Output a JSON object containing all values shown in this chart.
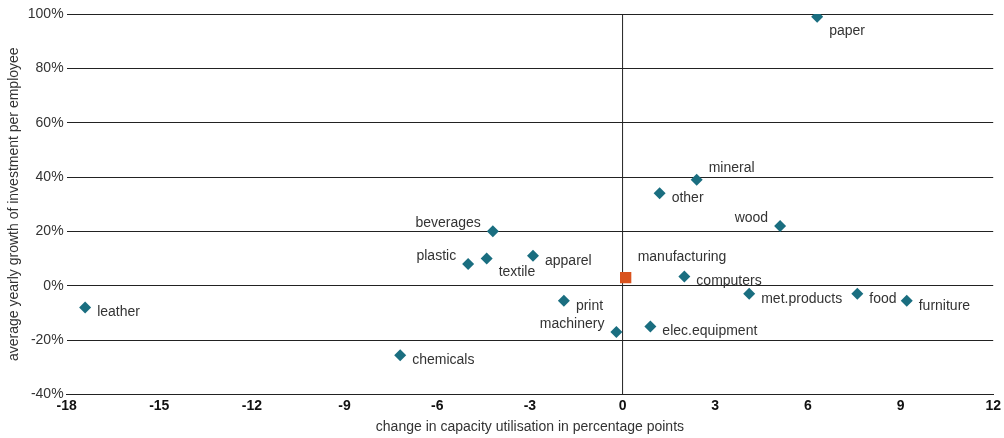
{
  "chart_data": {
    "type": "scatter",
    "xlabel": "change in capacity utilisation in percentage points",
    "ylabel": "average yearly growth of investment per employee",
    "series": [
      {
        "color": "#1a6e80",
        "marker": "diamond",
        "x": [
          6.3,
          2.4,
          1.2,
          5.1,
          -4.2,
          -2.9,
          -4.4,
          -5.0,
          2.0,
          4.1,
          7.6,
          9.2,
          -17.4,
          -1.9,
          -0.2,
          0.9,
          -7.2
        ],
        "values": [
          99,
          39,
          34,
          22,
          20,
          11,
          10,
          8,
          3.4,
          -3,
          -3,
          -5.5,
          -8,
          -5.5,
          -17,
          -15,
          -25.6
        ]
      },
      {
        "color": "#d9531e",
        "marker": "square",
        "x": [
          0.1
        ],
        "values": [
          3
        ]
      }
    ],
    "annotations": [
      {
        "text": "paper",
        "x": 6.3,
        "y": 99
      },
      {
        "text": "mineral",
        "x": 2.4,
        "y": 39
      },
      {
        "text": "other",
        "x": 1.2,
        "y": 34
      },
      {
        "text": "wood",
        "x": 5.1,
        "y": 22
      },
      {
        "text": "beverages",
        "x": -4.2,
        "y": 20
      },
      {
        "text": "apparel",
        "x": -2.9,
        "y": 11
      },
      {
        "text": "textile",
        "x": -4.4,
        "y": 10
      },
      {
        "text": "plastic",
        "x": -5.0,
        "y": 8
      },
      {
        "text": "manufacturing",
        "x": 0.1,
        "y": 3
      },
      {
        "text": "computers",
        "x": 2.0,
        "y": 3.4
      },
      {
        "text": "met.products",
        "x": 4.1,
        "y": -3
      },
      {
        "text": "food",
        "x": 7.6,
        "y": -3
      },
      {
        "text": "furniture",
        "x": 9.2,
        "y": -5.5
      },
      {
        "text": "leather",
        "x": -17.4,
        "y": -8
      },
      {
        "text": "print",
        "x": -1.9,
        "y": -5.5
      },
      {
        "text": "machinery",
        "x": -0.2,
        "y": -17
      },
      {
        "text": "elec.equipment",
        "x": 0.9,
        "y": -15
      },
      {
        "text": "chemicals",
        "x": -7.2,
        "y": -25.6
      }
    ],
    "xlim": [
      -18,
      12
    ],
    "xticks": [
      -18,
      -15,
      -12,
      -9,
      -6,
      -3,
      0,
      3,
      6,
      9,
      12
    ],
    "ylim": [
      -40,
      100
    ],
    "yticks": [
      {
        "value": -40,
        "label": "-40%"
      },
      {
        "value": -20,
        "label": "-20%"
      },
      {
        "value": 0,
        "label": "0%"
      },
      {
        "value": 20,
        "label": "20%"
      },
      {
        "value": 40,
        "label": "40%"
      },
      {
        "value": 60,
        "label": "60%"
      },
      {
        "value": 80,
        "label": "80%"
      },
      {
        "value": 100,
        "label": "100%"
      }
    ],
    "ref_lines": [
      {
        "axis": "x",
        "value": 0,
        "color": "#222222"
      }
    ],
    "grid": "y",
    "legend": false
  }
}
